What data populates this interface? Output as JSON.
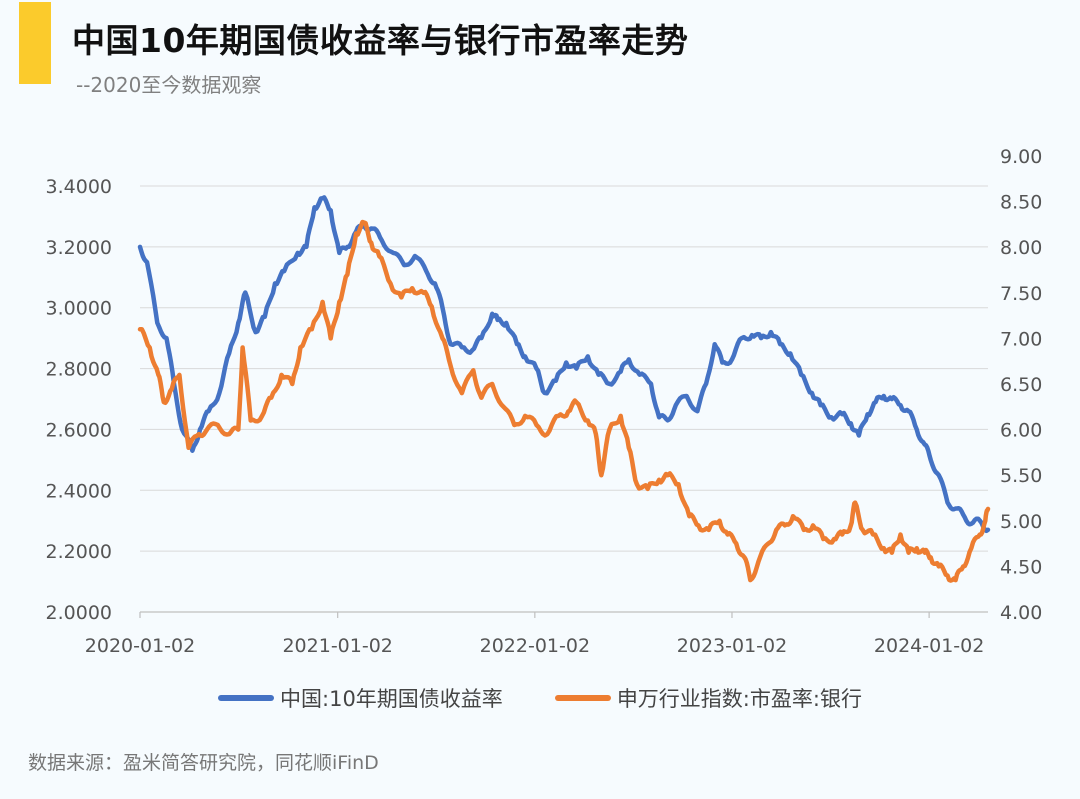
{
  "header": {
    "title": "中国10年期国债收益率与银行市盈率走势",
    "subtitle": "--2020至今数据观察"
  },
  "source": "数据来源：盈米简答研究院，同花顺iFinD",
  "colors": {
    "blue": "#4472c4",
    "orange": "#ed7d31",
    "accent": "#fbcb2c"
  },
  "chart_data": {
    "type": "line",
    "x_ticks": [
      "2020-01-02",
      "2021-01-02",
      "2022-01-02",
      "2023-01-02",
      "2024-01-02"
    ],
    "y_left": {
      "min": 2.0,
      "max": 3.4,
      "ticks": [
        "2.0000",
        "2.2000",
        "2.4000",
        "2.6000",
        "2.8000",
        "3.0000",
        "3.2000",
        "3.4000"
      ]
    },
    "y_right": {
      "min": 4.0,
      "max": 9.0,
      "ticks": [
        "4.00",
        "4.50",
        "5.00",
        "5.50",
        "6.00",
        "6.50",
        "7.00",
        "7.50",
        "8.00",
        "8.50",
        "9.00"
      ]
    },
    "grid": true,
    "legend_position": "bottom",
    "series": [
      {
        "name": "中国:10年期国债收益率",
        "axis": "left",
        "color": "#4472c4",
        "points": [
          [
            "2020-01-02",
            3.2
          ],
          [
            "2020-01-15",
            3.15
          ],
          [
            "2020-02-03",
            2.95
          ],
          [
            "2020-02-20",
            2.9
          ],
          [
            "2020-03-05",
            2.75
          ],
          [
            "2020-03-20",
            2.6
          ],
          [
            "2020-04-08",
            2.53
          ],
          [
            "2020-04-22",
            2.6
          ],
          [
            "2020-05-08",
            2.66
          ],
          [
            "2020-05-28",
            2.72
          ],
          [
            "2020-06-15",
            2.85
          ],
          [
            "2020-07-02",
            2.95
          ],
          [
            "2020-07-15",
            3.05
          ],
          [
            "2020-08-03",
            2.92
          ],
          [
            "2020-08-20",
            2.97
          ],
          [
            "2020-09-08",
            3.08
          ],
          [
            "2020-09-25",
            3.12
          ],
          [
            "2020-10-20",
            3.18
          ],
          [
            "2020-11-05",
            3.2
          ],
          [
            "2020-11-20",
            3.33
          ],
          [
            "2020-12-05",
            3.36
          ],
          [
            "2020-12-20",
            3.32
          ],
          [
            "2021-01-05",
            3.18
          ],
          [
            "2021-01-20",
            3.2
          ],
          [
            "2021-02-05",
            3.25
          ],
          [
            "2021-02-20",
            3.27
          ],
          [
            "2021-03-08",
            3.26
          ],
          [
            "2021-03-25",
            3.22
          ],
          [
            "2021-04-15",
            3.18
          ],
          [
            "2021-05-05",
            3.14
          ],
          [
            "2021-05-25",
            3.17
          ],
          [
            "2021-06-15",
            3.12
          ],
          [
            "2021-07-01",
            3.08
          ],
          [
            "2021-07-15",
            3.0
          ],
          [
            "2021-07-30",
            2.88
          ],
          [
            "2021-08-20",
            2.87
          ],
          [
            "2021-09-08",
            2.86
          ],
          [
            "2021-09-25",
            2.9
          ],
          [
            "2021-10-15",
            2.98
          ],
          [
            "2021-10-25",
            2.96
          ],
          [
            "2021-11-10",
            2.95
          ],
          [
            "2021-11-30",
            2.88
          ],
          [
            "2021-12-15",
            2.84
          ],
          [
            "2022-01-05",
            2.8
          ],
          [
            "2022-01-20",
            2.72
          ],
          [
            "2022-02-10",
            2.76
          ],
          [
            "2022-03-01",
            2.82
          ],
          [
            "2022-03-20",
            2.8
          ],
          [
            "2022-04-10",
            2.84
          ],
          [
            "2022-04-30",
            2.78
          ],
          [
            "2022-05-20",
            2.75
          ],
          [
            "2022-06-10",
            2.79
          ],
          [
            "2022-06-25",
            2.83
          ],
          [
            "2022-07-15",
            2.78
          ],
          [
            "2022-08-05",
            2.75
          ],
          [
            "2022-08-20",
            2.64
          ],
          [
            "2022-09-05",
            2.63
          ],
          [
            "2022-09-20",
            2.68
          ],
          [
            "2022-10-10",
            2.71
          ],
          [
            "2022-10-30",
            2.66
          ],
          [
            "2022-11-15",
            2.75
          ],
          [
            "2022-12-01",
            2.88
          ],
          [
            "2022-12-15",
            2.82
          ],
          [
            "2023-01-02",
            2.83
          ],
          [
            "2023-01-20",
            2.9
          ],
          [
            "2023-02-08",
            2.91
          ],
          [
            "2023-02-25",
            2.9
          ],
          [
            "2023-03-15",
            2.92
          ],
          [
            "2023-04-01",
            2.88
          ],
          [
            "2023-04-20",
            2.85
          ],
          [
            "2023-05-10",
            2.78
          ],
          [
            "2023-05-30",
            2.72
          ],
          [
            "2023-06-15",
            2.68
          ],
          [
            "2023-07-05",
            2.64
          ],
          [
            "2023-07-25",
            2.65
          ],
          [
            "2023-08-10",
            2.62
          ],
          [
            "2023-08-25",
            2.58
          ],
          [
            "2023-09-10",
            2.65
          ],
          [
            "2023-09-25",
            2.69
          ],
          [
            "2023-10-10",
            2.71
          ],
          [
            "2023-10-25",
            2.7
          ],
          [
            "2023-11-10",
            2.68
          ],
          [
            "2023-11-25",
            2.66
          ],
          [
            "2023-12-10",
            2.6
          ],
          [
            "2023-12-25",
            2.55
          ],
          [
            "2024-01-05",
            2.5
          ],
          [
            "2024-01-20",
            2.45
          ],
          [
            "2024-02-05",
            2.36
          ],
          [
            "2024-02-20",
            2.34
          ],
          [
            "2024-03-05",
            2.32
          ],
          [
            "2024-03-20",
            2.29
          ],
          [
            "2024-04-05",
            2.3
          ],
          [
            "2024-04-20",
            2.27
          ]
        ]
      },
      {
        "name": "申万行业指数:市盈率:银行",
        "axis": "right",
        "color": "#ed7d31",
        "points": [
          [
            "2020-01-02",
            7.1
          ],
          [
            "2020-01-20",
            6.9
          ],
          [
            "2020-02-05",
            6.6
          ],
          [
            "2020-02-15",
            6.3
          ],
          [
            "2020-03-01",
            6.45
          ],
          [
            "2020-03-15",
            6.6
          ],
          [
            "2020-04-01",
            5.8
          ],
          [
            "2020-04-20",
            5.95
          ],
          [
            "2020-05-05",
            6.0
          ],
          [
            "2020-05-25",
            6.05
          ],
          [
            "2020-06-15",
            5.95
          ],
          [
            "2020-07-02",
            6.0
          ],
          [
            "2020-07-10",
            6.9
          ],
          [
            "2020-07-25",
            6.1
          ],
          [
            "2020-08-15",
            6.15
          ],
          [
            "2020-09-01",
            6.35
          ],
          [
            "2020-09-20",
            6.6
          ],
          [
            "2020-10-10",
            6.5
          ],
          [
            "2020-10-25",
            6.9
          ],
          [
            "2020-11-15",
            7.1
          ],
          [
            "2020-12-05",
            7.4
          ],
          [
            "2020-12-20",
            7.0
          ],
          [
            "2021-01-05",
            7.4
          ],
          [
            "2021-01-20",
            7.7
          ],
          [
            "2021-02-05",
            8.15
          ],
          [
            "2021-02-20",
            8.27
          ],
          [
            "2021-03-05",
            8.05
          ],
          [
            "2021-03-20",
            7.9
          ],
          [
            "2021-04-10",
            7.6
          ],
          [
            "2021-04-30",
            7.45
          ],
          [
            "2021-05-20",
            7.55
          ],
          [
            "2021-06-10",
            7.5
          ],
          [
            "2021-06-25",
            7.35
          ],
          [
            "2021-07-15",
            7.0
          ],
          [
            "2021-07-30",
            6.7
          ],
          [
            "2021-08-20",
            6.4
          ],
          [
            "2021-09-10",
            6.65
          ],
          [
            "2021-09-25",
            6.35
          ],
          [
            "2021-10-15",
            6.5
          ],
          [
            "2021-11-05",
            6.25
          ],
          [
            "2021-11-25",
            6.05
          ],
          [
            "2021-12-15",
            6.15
          ],
          [
            "2022-01-05",
            6.05
          ],
          [
            "2022-01-25",
            5.95
          ],
          [
            "2022-02-15",
            6.15
          ],
          [
            "2022-03-05",
            6.2
          ],
          [
            "2022-03-20",
            6.3
          ],
          [
            "2022-04-10",
            6.1
          ],
          [
            "2022-04-25",
            5.95
          ],
          [
            "2022-05-05",
            5.5
          ],
          [
            "2022-05-20",
            6.0
          ],
          [
            "2022-06-10",
            6.15
          ],
          [
            "2022-06-25",
            5.8
          ],
          [
            "2022-07-10",
            5.4
          ],
          [
            "2022-07-30",
            5.35
          ],
          [
            "2022-08-20",
            5.45
          ],
          [
            "2022-09-05",
            5.5
          ],
          [
            "2022-09-25",
            5.4
          ],
          [
            "2022-10-15",
            5.05
          ],
          [
            "2022-11-01",
            4.95
          ],
          [
            "2022-11-20",
            4.9
          ],
          [
            "2022-12-10",
            5.0
          ],
          [
            "2022-12-25",
            4.85
          ],
          [
            "2023-01-10",
            4.75
          ],
          [
            "2023-01-25",
            4.6
          ],
          [
            "2023-02-05",
            4.35
          ],
          [
            "2023-02-20",
            4.55
          ],
          [
            "2023-03-10",
            4.75
          ],
          [
            "2023-03-25",
            4.9
          ],
          [
            "2023-04-10",
            4.95
          ],
          [
            "2023-04-25",
            5.05
          ],
          [
            "2023-05-15",
            4.9
          ],
          [
            "2023-06-01",
            4.95
          ],
          [
            "2023-06-20",
            4.8
          ],
          [
            "2023-07-10",
            4.8
          ],
          [
            "2023-07-25",
            4.85
          ],
          [
            "2023-08-10",
            4.95
          ],
          [
            "2023-08-18",
            5.2
          ],
          [
            "2023-09-01",
            4.9
          ],
          [
            "2023-09-20",
            4.85
          ],
          [
            "2023-10-10",
            4.7
          ],
          [
            "2023-10-25",
            4.65
          ],
          [
            "2023-11-10",
            4.85
          ],
          [
            "2023-11-25",
            4.65
          ],
          [
            "2023-12-10",
            4.7
          ],
          [
            "2023-12-25",
            4.65
          ],
          [
            "2024-01-05",
            4.6
          ],
          [
            "2024-01-20",
            4.5
          ],
          [
            "2024-02-05",
            4.4
          ],
          [
            "2024-02-20",
            4.35
          ],
          [
            "2024-03-05",
            4.5
          ],
          [
            "2024-03-20",
            4.7
          ],
          [
            "2024-04-05",
            4.85
          ],
          [
            "2024-04-15",
            5.0
          ],
          [
            "2024-04-20",
            5.13
          ]
        ]
      }
    ]
  }
}
